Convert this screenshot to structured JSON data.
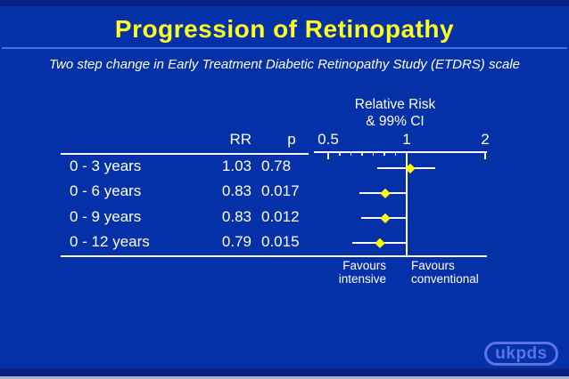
{
  "slide": {
    "title": "Progression of Retinopathy",
    "subtitle": "Two step change in Early Treatment Diabetic Retinopathy Study (ETDRS) scale",
    "logo": "ukpds"
  },
  "colors": {
    "background": "#0531a8",
    "border_strip": "#0a2184",
    "bottom_edge": "#a9b2c4",
    "title_yellow": "#ffff21",
    "underline_blue": "#4a6ae0",
    "text_white": "#ffffff",
    "marker_yellow": "#ffff00",
    "logo_blue": "#5c72e6"
  },
  "chart_data": {
    "type": "forest",
    "title": "Progression of Retinopathy",
    "subtitle": "Two step change in Early Treatment Diabetic Retinopathy Study (ETDRS) scale",
    "header_line1": "Relative Risk",
    "header_line2": "& 99% CI",
    "columns": {
      "rr": "RR",
      "p": "p"
    },
    "axis": {
      "scale": "log",
      "range": [
        0.5,
        2
      ],
      "ticks": [
        0.5,
        1,
        2
      ],
      "tick_labels": [
        "0.5",
        "1",
        "2"
      ],
      "minor_ticks_count_between_0.5_and_1": 6,
      "reference_line": 1
    },
    "rows": [
      {
        "label": "0 - 3 years",
        "rr": "1.03",
        "p": "0.78",
        "rr_value": 1.03,
        "ci_low": 0.77,
        "ci_high": 1.29
      },
      {
        "label": "0 - 6 years",
        "rr": "0.83",
        "p": "0.017",
        "rr_value": 0.83,
        "ci_low": 0.66,
        "ci_high": 0.99
      },
      {
        "label": "0 - 9 years",
        "rr": "0.83",
        "p": "0.012",
        "rr_value": 0.83,
        "ci_low": 0.67,
        "ci_high": 0.99
      },
      {
        "label": "0 - 12 years",
        "rr": "0.79",
        "p": "0.015",
        "rr_value": 0.79,
        "ci_low": 0.62,
        "ci_high": 0.99
      }
    ],
    "footer": {
      "left_line1": "Favours",
      "left_line2": "intensive",
      "right_line1": "Favours",
      "right_line2": "conventional"
    },
    "legend_position": "none",
    "grid": false
  }
}
